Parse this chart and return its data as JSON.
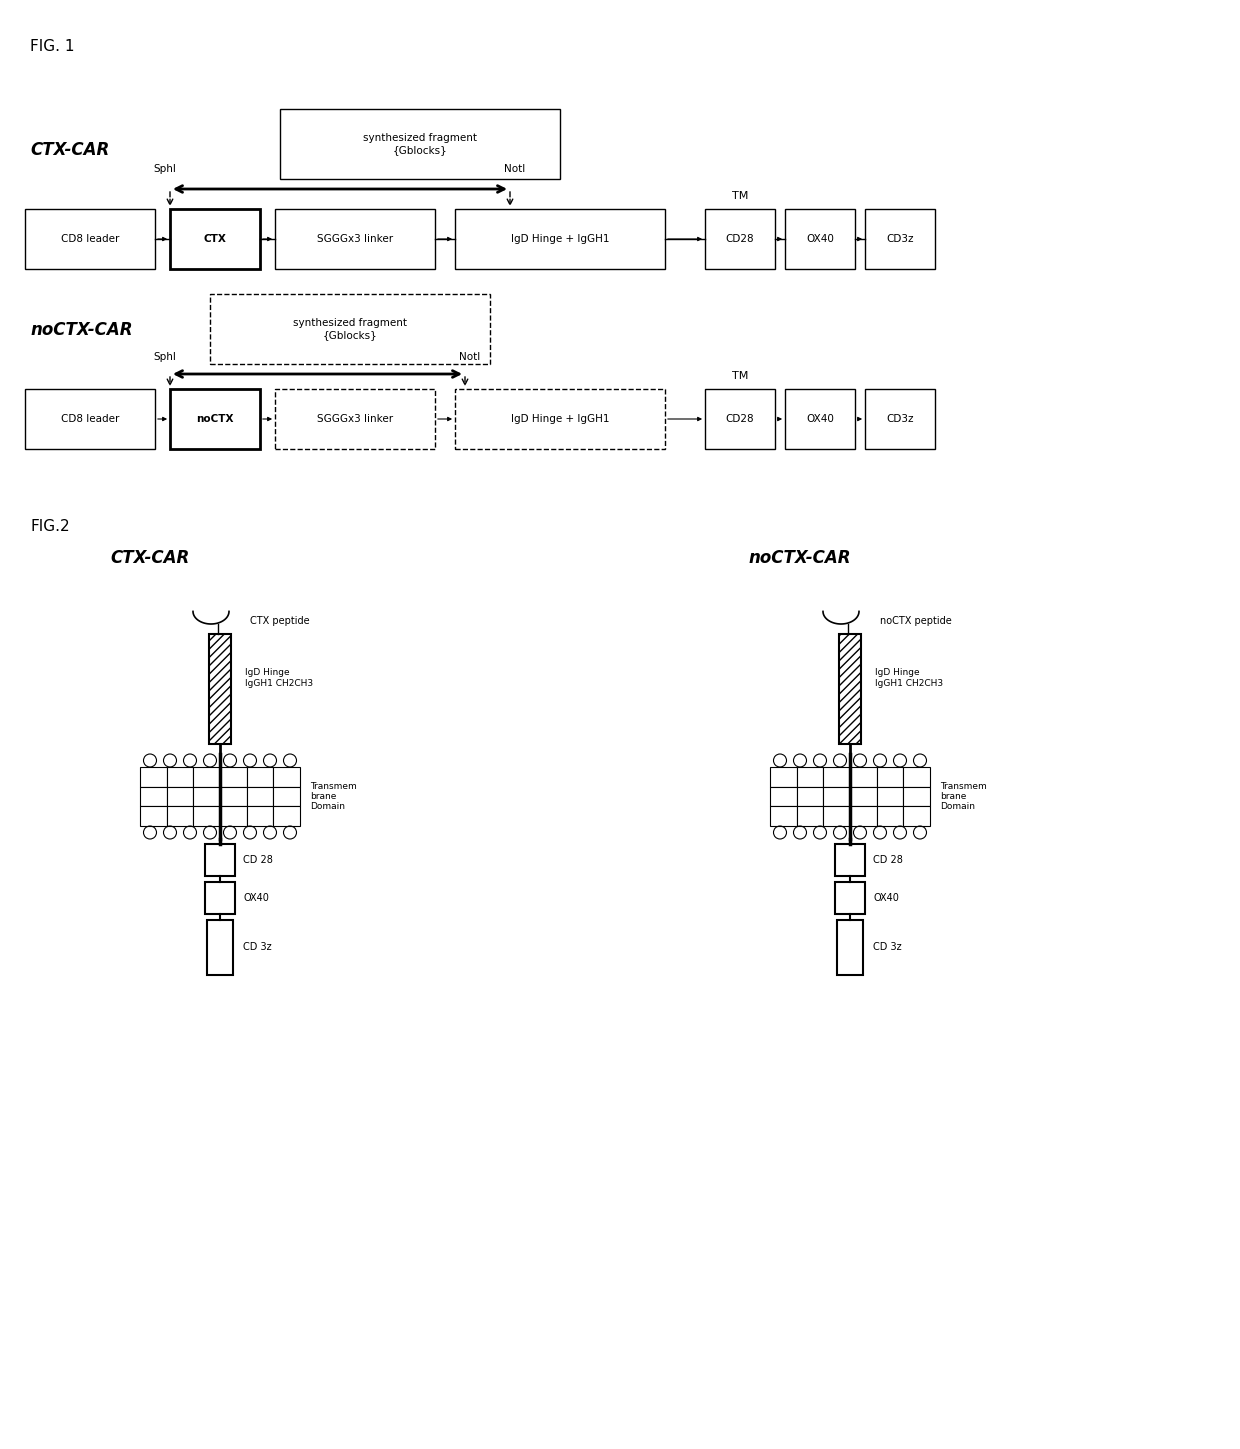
{
  "fig1_title": "FIG. 1",
  "fig2_title": "FIG.2",
  "ctxcar_label": "CTX-CAR",
  "noctxcar_label": "noCTX-CAR",
  "fig2_ctxcar_label": "CTX-CAR",
  "fig2_noctxcar_label": "noCTX-CAR",
  "synth_label": "synthesized fragment\n{Gblocks}",
  "sphi_label": "SphI",
  "noti_label": "NotI",
  "tm_label": "TM",
  "ctx_boxes": [
    "CD8 leader",
    "CTX",
    "SGGGx3 linker",
    "IgD Hinge + IgGH1",
    "CD28",
    "OX40",
    "CD3z"
  ],
  "noctx_boxes": [
    "CD8 leader",
    "noCTX",
    "SGGGx3 linker",
    "IgD Hinge + IgGH1",
    "CD28",
    "OX40",
    "CD3z"
  ],
  "ctx_bold": [
    false,
    true,
    false,
    false,
    false,
    false,
    false
  ],
  "noctx_bold": [
    false,
    true,
    false,
    false,
    false,
    false,
    false
  ],
  "bg_color": "#ffffff",
  "text_color": "#000000",
  "box_color": "#ffffff",
  "box_edge_color": "#000000"
}
